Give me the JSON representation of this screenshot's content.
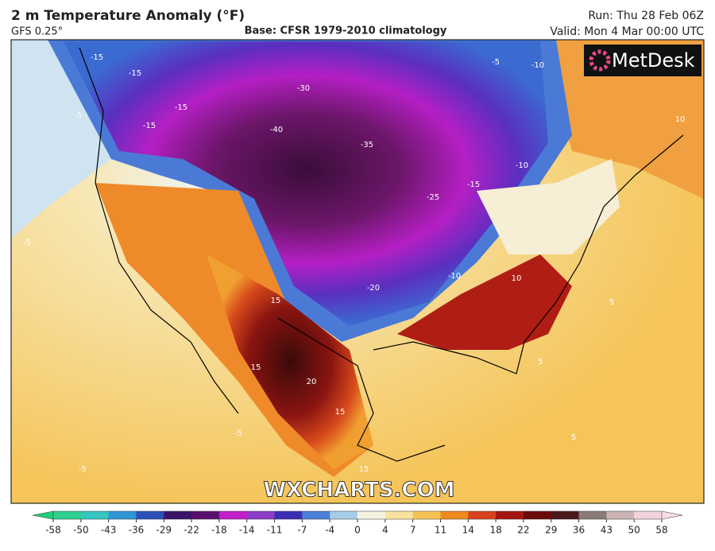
{
  "header": {
    "title": "2 m Temperature Anomaly (°F)",
    "model": "GFS 0.25°",
    "base": "Base: CFSR 1979-2010 climatology",
    "run": "Run: Thu 28 Feb 06Z",
    "valid": "Valid: Mon 4 Mar 00:00 UTC"
  },
  "map": {
    "logo": "MetDesk",
    "watermark": "WXCHARTS.COM",
    "contour_labels": [
      "-15",
      "-15",
      "-15",
      "-15",
      "-5",
      "-40",
      "-35",
      "-30",
      "-25",
      "-15",
      "-20",
      "-10",
      "-10",
      "-5",
      "-10",
      "-5",
      "10",
      "15",
      "15",
      "20",
      "15",
      "15",
      "5",
      "-5",
      "-5",
      "5",
      "10",
      "5"
    ]
  },
  "colorbar": {
    "ticks": [
      -58,
      -50,
      -43,
      -36,
      -29,
      -22,
      -18,
      -14,
      -11,
      -7,
      -4,
      0,
      4,
      7,
      11,
      14,
      18,
      22,
      29,
      36,
      43,
      50,
      58
    ],
    "colors": [
      "#2fcf8e",
      "#35c4c0",
      "#2f96d6",
      "#2c4fb8",
      "#3a1468",
      "#5a0f6e",
      "#c21ec9",
      "#8e3cc8",
      "#3a2fb4",
      "#4c80d8",
      "#a6cde8",
      "#f6f2e2",
      "#f7e3a0",
      "#f5c354",
      "#ef8a1f",
      "#d8421c",
      "#a4160f",
      "#6a0b0a",
      "#4a1a1a",
      "#8a7a78",
      "#c9b3b3",
      "#f2d3dc"
    ],
    "under": "#1fd07a",
    "over": "#f7dce6"
  }
}
